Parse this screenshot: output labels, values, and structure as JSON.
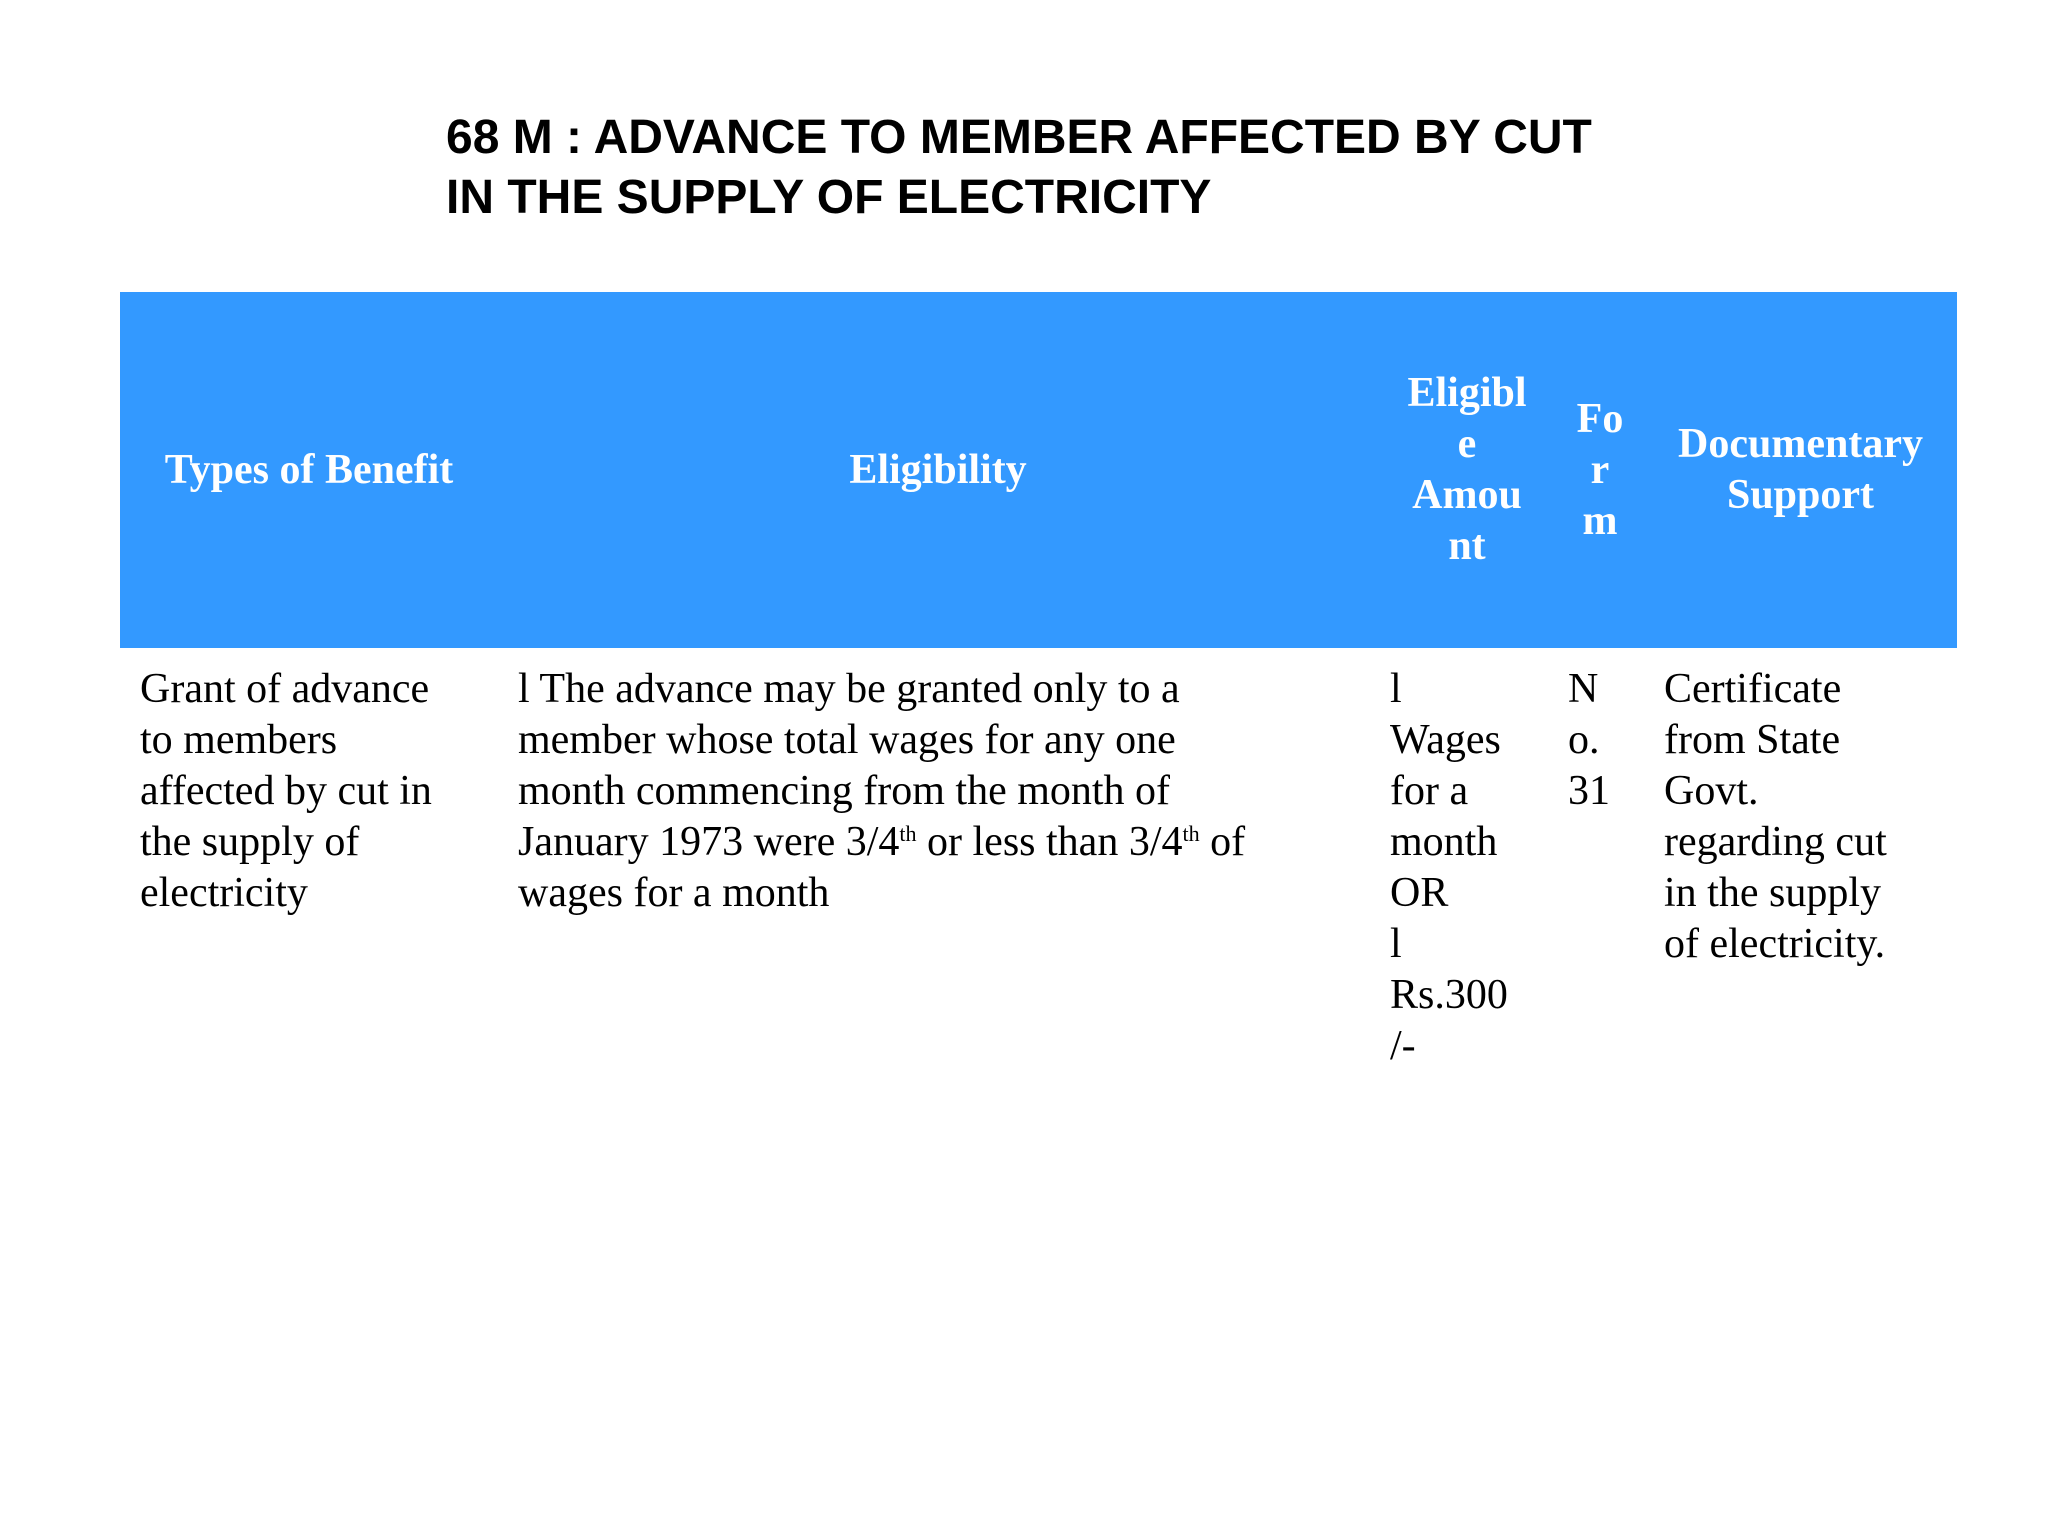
{
  "title": {
    "line1": "68 M : ADVANCE TO MEMBER AFFECTED BY CUT",
    "line2": "IN THE SUPPLY OF ELECTRICITY"
  },
  "table": {
    "headers": {
      "type": "Types of Benefit",
      "eligibility": "Eligibility",
      "amount_lines": [
        "Eligibl",
        "e",
        "Amou",
        "nt"
      ],
      "form_lines": [
        "Fo",
        "r",
        "m"
      ],
      "docs_lines": [
        "Documentary",
        "Support"
      ]
    },
    "row": {
      "type_lines": [
        "Grant of advance",
        "to members",
        "affected by cut in",
        "the supply of",
        "electricity"
      ],
      "eligibility": {
        "line1": "l The advance may be granted only to a",
        "line2": "member whose total wages for any one",
        "line3": "month commencing from the month of",
        "line4_a": "January 1973 were 3/4",
        "sup1": "th",
        "line4_b": " or less than 3/4",
        "sup2": "th",
        "line4_c": " of",
        "line5": "wages for a month"
      },
      "amount_lines": [
        "l",
        "Wages",
        "for a",
        "month",
        "OR",
        "l",
        "Rs.300",
        "/-"
      ],
      "form_lines": [
        "N",
        "o.",
        "31"
      ],
      "docs_lines": [
        "Certificate",
        "from State",
        "Govt.",
        "regarding cut",
        "in the supply",
        "of electricity."
      ]
    }
  }
}
